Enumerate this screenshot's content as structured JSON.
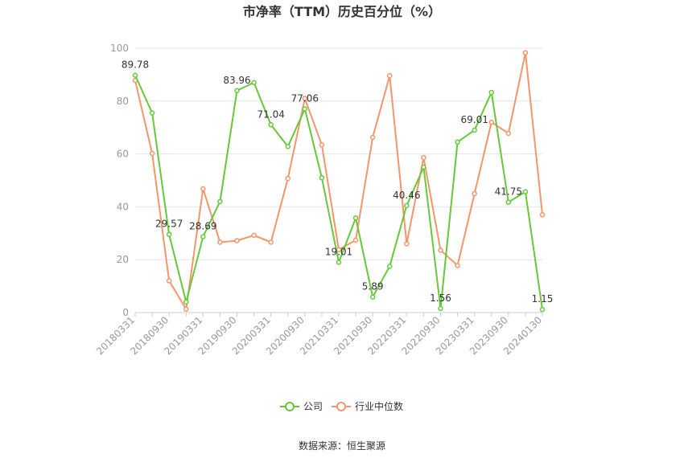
{
  "chart_data": {
    "type": "line",
    "title": "市净率（TTM）历史百分位（%）",
    "xlabel": "",
    "ylabel": "",
    "ylim": [
      0,
      100
    ],
    "yticks": [
      0,
      20,
      40,
      60,
      80,
      100
    ],
    "grid": true,
    "legend_position": "bottom",
    "x_tick_labels": [
      "20180331",
      "20180930",
      "20190331",
      "20190930",
      "20200331",
      "20200930",
      "20210331",
      "20210930",
      "20220331",
      "20220930",
      "20230331",
      "20230930",
      "20240130"
    ],
    "series": [
      {
        "name": "公司",
        "color": "#66c93a",
        "values": [
          89.78,
          75.5,
          29.57,
          4.0,
          28.69,
          42.0,
          83.96,
          87.0,
          71.04,
          62.8,
          77.06,
          51.0,
          19.01,
          35.8,
          5.89,
          17.5,
          40.46,
          55.0,
          1.56,
          64.5,
          69.01,
          83.3,
          41.75,
          45.7,
          1.15
        ]
      },
      {
        "name": "行业中位数",
        "color": "#f4956a",
        "values": [
          87.8,
          60.2,
          12.0,
          1.3,
          46.8,
          26.6,
          27.2,
          29.2,
          26.6,
          50.7,
          81.0,
          63.4,
          23.8,
          27.4,
          66.3,
          89.6,
          26.0,
          58.6,
          23.6,
          17.8,
          45.0,
          72.0,
          67.8,
          98.3,
          37.0
        ]
      }
    ],
    "data_labels": [
      {
        "index": 0,
        "text": "89.78"
      },
      {
        "index": 2,
        "text": "29.57"
      },
      {
        "index": 4,
        "text": "28.69"
      },
      {
        "index": 6,
        "text": "83.96"
      },
      {
        "index": 8,
        "text": "71.04"
      },
      {
        "index": 10,
        "text": "77.06"
      },
      {
        "index": 12,
        "text": "19.01"
      },
      {
        "index": 14,
        "text": "5.89"
      },
      {
        "index": 16,
        "text": "40.46"
      },
      {
        "index": 18,
        "text": "1.56"
      },
      {
        "index": 20,
        "text": "69.01"
      },
      {
        "index": 22,
        "text": "41.75"
      },
      {
        "index": 24,
        "text": "1.15"
      }
    ]
  },
  "legend": {
    "company_label": "公司",
    "industry_label": "行业中位数"
  },
  "source": "数据来源：恒生聚源"
}
